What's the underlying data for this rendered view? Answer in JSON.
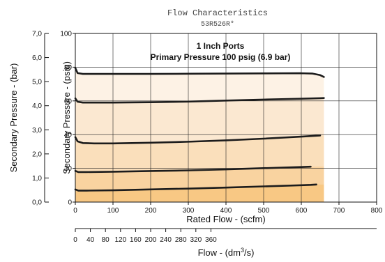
{
  "chart_data": {
    "type": "area",
    "title": "Flow Characteristics",
    "subtitle": "53R526R*",
    "annotation": [
      "1 Inch Ports",
      "Primary Pressure 100 psig (6.9 bar)"
    ],
    "xlabel": "Rated Flow - (scfm)",
    "xlim": [
      0,
      800
    ],
    "x_ticks": [
      0,
      100,
      200,
      300,
      400,
      500,
      600,
      700,
      800
    ],
    "ylabel": "Secondary Pressure - (psig)",
    "ylim": [
      0,
      100
    ],
    "y_ticks": [
      0,
      20,
      40,
      60,
      80,
      100
    ],
    "secondary_y": {
      "label": "Secondary Pressure - (bar)",
      "ticks": [
        0,
        1,
        2,
        3,
        4,
        5,
        6,
        7
      ],
      "tick_labels": [
        "0,0",
        "1,0",
        "2,0",
        "3,0",
        "4,0",
        "5,0",
        "6,0",
        "7,0"
      ],
      "range": [
        0,
        7
      ]
    },
    "secondary_x": {
      "label": "Flow - (dm³/s)",
      "label_base": "Flow - (dm",
      "label_sup": "3",
      "label_end": "/s)",
      "ticks": [
        0,
        40,
        80,
        120,
        160,
        200,
        240,
        280,
        320,
        360
      ],
      "max_scfm_equiv": 800
    },
    "grid": true,
    "shade_limit_x": 660,
    "series": [
      {
        "x": [
          0,
          8,
          30,
          100,
          200,
          300,
          400,
          500,
          600,
          625,
          640
        ],
        "y": [
          7.5,
          6.8,
          6.8,
          7.0,
          7.5,
          8.0,
          8.6,
          9.3,
          10.0,
          10.2,
          10.4
        ]
      },
      {
        "x": [
          0,
          8,
          30,
          100,
          200,
          300,
          400,
          500,
          600,
          625
        ],
        "y": [
          18.5,
          17.8,
          17.8,
          18.0,
          18.4,
          18.8,
          19.4,
          20.1,
          20.8,
          21.0
        ]
      },
      {
        "x": [
          0,
          6,
          20,
          50,
          100,
          200,
          300,
          400,
          500,
          600,
          650
        ],
        "y": [
          38.5,
          36.0,
          35.0,
          34.8,
          34.8,
          35.2,
          35.8,
          36.6,
          37.6,
          38.8,
          39.5
        ]
      },
      {
        "x": [
          0,
          6,
          20,
          50,
          100,
          200,
          300,
          400,
          500,
          600,
          650,
          660
        ],
        "y": [
          61.5,
          59.5,
          59.0,
          59.0,
          59.0,
          59.2,
          59.6,
          60.2,
          60.8,
          61.3,
          61.6,
          61.7
        ]
      },
      {
        "x": [
          0,
          6,
          20,
          50,
          100,
          200,
          300,
          400,
          500,
          600,
          630,
          650,
          660
        ],
        "y": [
          79.5,
          76.5,
          76.0,
          76.0,
          76.0,
          76.0,
          76.1,
          76.2,
          76.3,
          76.4,
          76.2,
          75.3,
          74.2
        ]
      }
    ],
    "band_colors": [
      "#f8c884",
      "#f9d3a0",
      "#fadfbb",
      "#fbe8d1",
      "#fdf2e5"
    ],
    "line_color": "#1c1c1c"
  }
}
